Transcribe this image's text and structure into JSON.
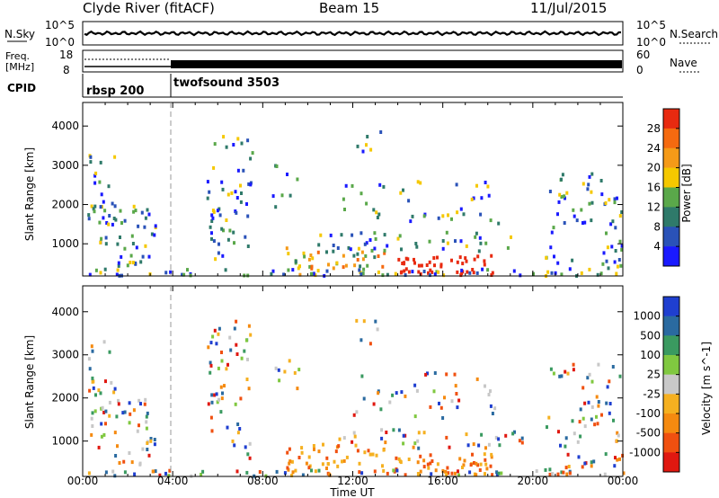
{
  "header": {
    "title": "Clyde River (fitACF)",
    "beam": "Beam 15",
    "date": "11/Jul/2015"
  },
  "panels": {
    "nsky": {
      "label": "N.Sky",
      "right_label": "N.Search",
      "ticks_left": [
        "10^5",
        "10^0"
      ],
      "ticks_right": [
        "10^5",
        "10^0"
      ]
    },
    "freq": {
      "label_top": "Freq.",
      "label_unit": "[MHz]",
      "right_label": "Nave",
      "ticks_left": [
        "18",
        "8"
      ],
      "ticks_right": [
        "60",
        "0"
      ]
    },
    "cpid": {
      "label": "CPID",
      "programs": [
        "rbsp 200",
        "twofsound 3503"
      ]
    }
  },
  "chart_data": [
    {
      "type": "heatmap",
      "quantity": "Power",
      "xlabel": "Time UT",
      "ylabel": "Slant Range [km]",
      "x_ticks": [
        "00:00",
        "04:00",
        "08:00",
        "12:00",
        "16:00",
        "20:00",
        "00:00"
      ],
      "y_ticks": [
        1000,
        2000,
        3000,
        4000
      ],
      "ylim": [
        180,
        4600
      ],
      "colorbar": {
        "label": "Power [dB]",
        "ticks": [
          4,
          8,
          12,
          16,
          20,
          24,
          28
        ],
        "colors": [
          "#1a1aff",
          "#2a52b8",
          "#2f7a6a",
          "#5aa84a",
          "#f5c800",
          "#f59a18",
          "#f56a10",
          "#e82a10"
        ]
      }
    },
    {
      "type": "heatmap",
      "quantity": "Velocity",
      "xlabel": "Time UT",
      "ylabel": "Slant Range [km]",
      "x_ticks": [
        "00:00",
        "04:00",
        "08:00",
        "12:00",
        "16:00",
        "20:00",
        "00:00"
      ],
      "y_ticks": [
        1000,
        2000,
        3000,
        4000
      ],
      "ylim": [
        180,
        4600
      ],
      "colorbar": {
        "label": "Velocity [m s^-1]",
        "ticks": [
          1000,
          500,
          100,
          25,
          -25,
          -100,
          -500,
          -1000
        ],
        "colors": [
          "#1f3fd0",
          "#2a6aa0",
          "#3a9a60",
          "#80c840",
          "#c8c8c8",
          "#f5b020",
          "#f58a10",
          "#f05010",
          "#e01810"
        ]
      }
    }
  ]
}
